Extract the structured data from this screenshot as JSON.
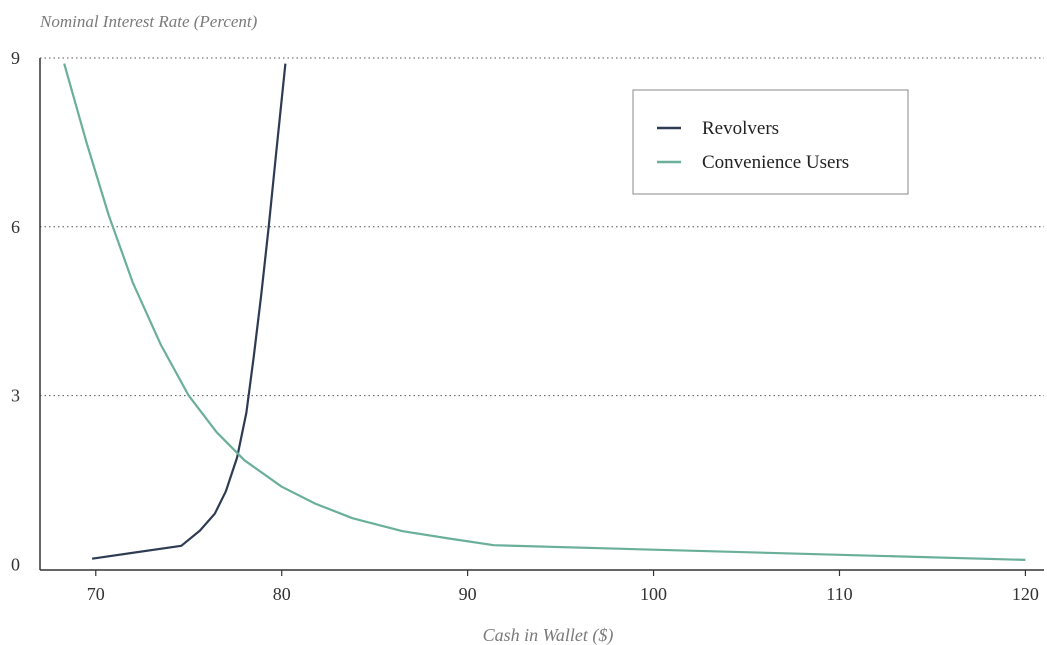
{
  "chart_data": {
    "type": "line",
    "ylabel": "Nominal Interest Rate (Percent)",
    "xlabel": "Cash in Wallet ($)",
    "xlim": [
      67,
      121
    ],
    "ylim": [
      -0.1,
      9
    ],
    "x_ticks": [
      70,
      80,
      90,
      100,
      110,
      120
    ],
    "y_ticks": [
      0,
      3,
      6,
      9
    ],
    "grid": "horizontal-dotted",
    "legend_position": "top-right",
    "series": [
      {
        "name": "Revolvers",
        "color": "#2e3b52",
        "points": [
          [
            69.8,
            0.1
          ],
          [
            74.6,
            0.33
          ],
          [
            75.6,
            0.6
          ],
          [
            76.4,
            0.9
          ],
          [
            77.0,
            1.3
          ],
          [
            77.6,
            1.9
          ],
          [
            78.1,
            2.7
          ],
          [
            78.5,
            3.7
          ],
          [
            78.9,
            4.8
          ],
          [
            79.3,
            6.0
          ],
          [
            79.7,
            7.3
          ],
          [
            80.2,
            8.9
          ]
        ]
      },
      {
        "name": "Convenience Users",
        "color": "#6aaf9a",
        "points": [
          [
            68.3,
            8.9
          ],
          [
            69.5,
            7.5
          ],
          [
            70.7,
            6.2
          ],
          [
            72.0,
            5.0
          ],
          [
            73.5,
            3.9
          ],
          [
            75.0,
            3.0
          ],
          [
            76.5,
            2.35
          ],
          [
            78.0,
            1.85
          ],
          [
            80.0,
            1.38
          ],
          [
            81.8,
            1.08
          ],
          [
            83.8,
            0.82
          ],
          [
            86.5,
            0.59
          ],
          [
            89.0,
            0.46
          ],
          [
            91.4,
            0.34
          ],
          [
            100.0,
            0.26
          ],
          [
            110.0,
            0.17
          ],
          [
            120.0,
            0.08
          ]
        ]
      }
    ]
  }
}
